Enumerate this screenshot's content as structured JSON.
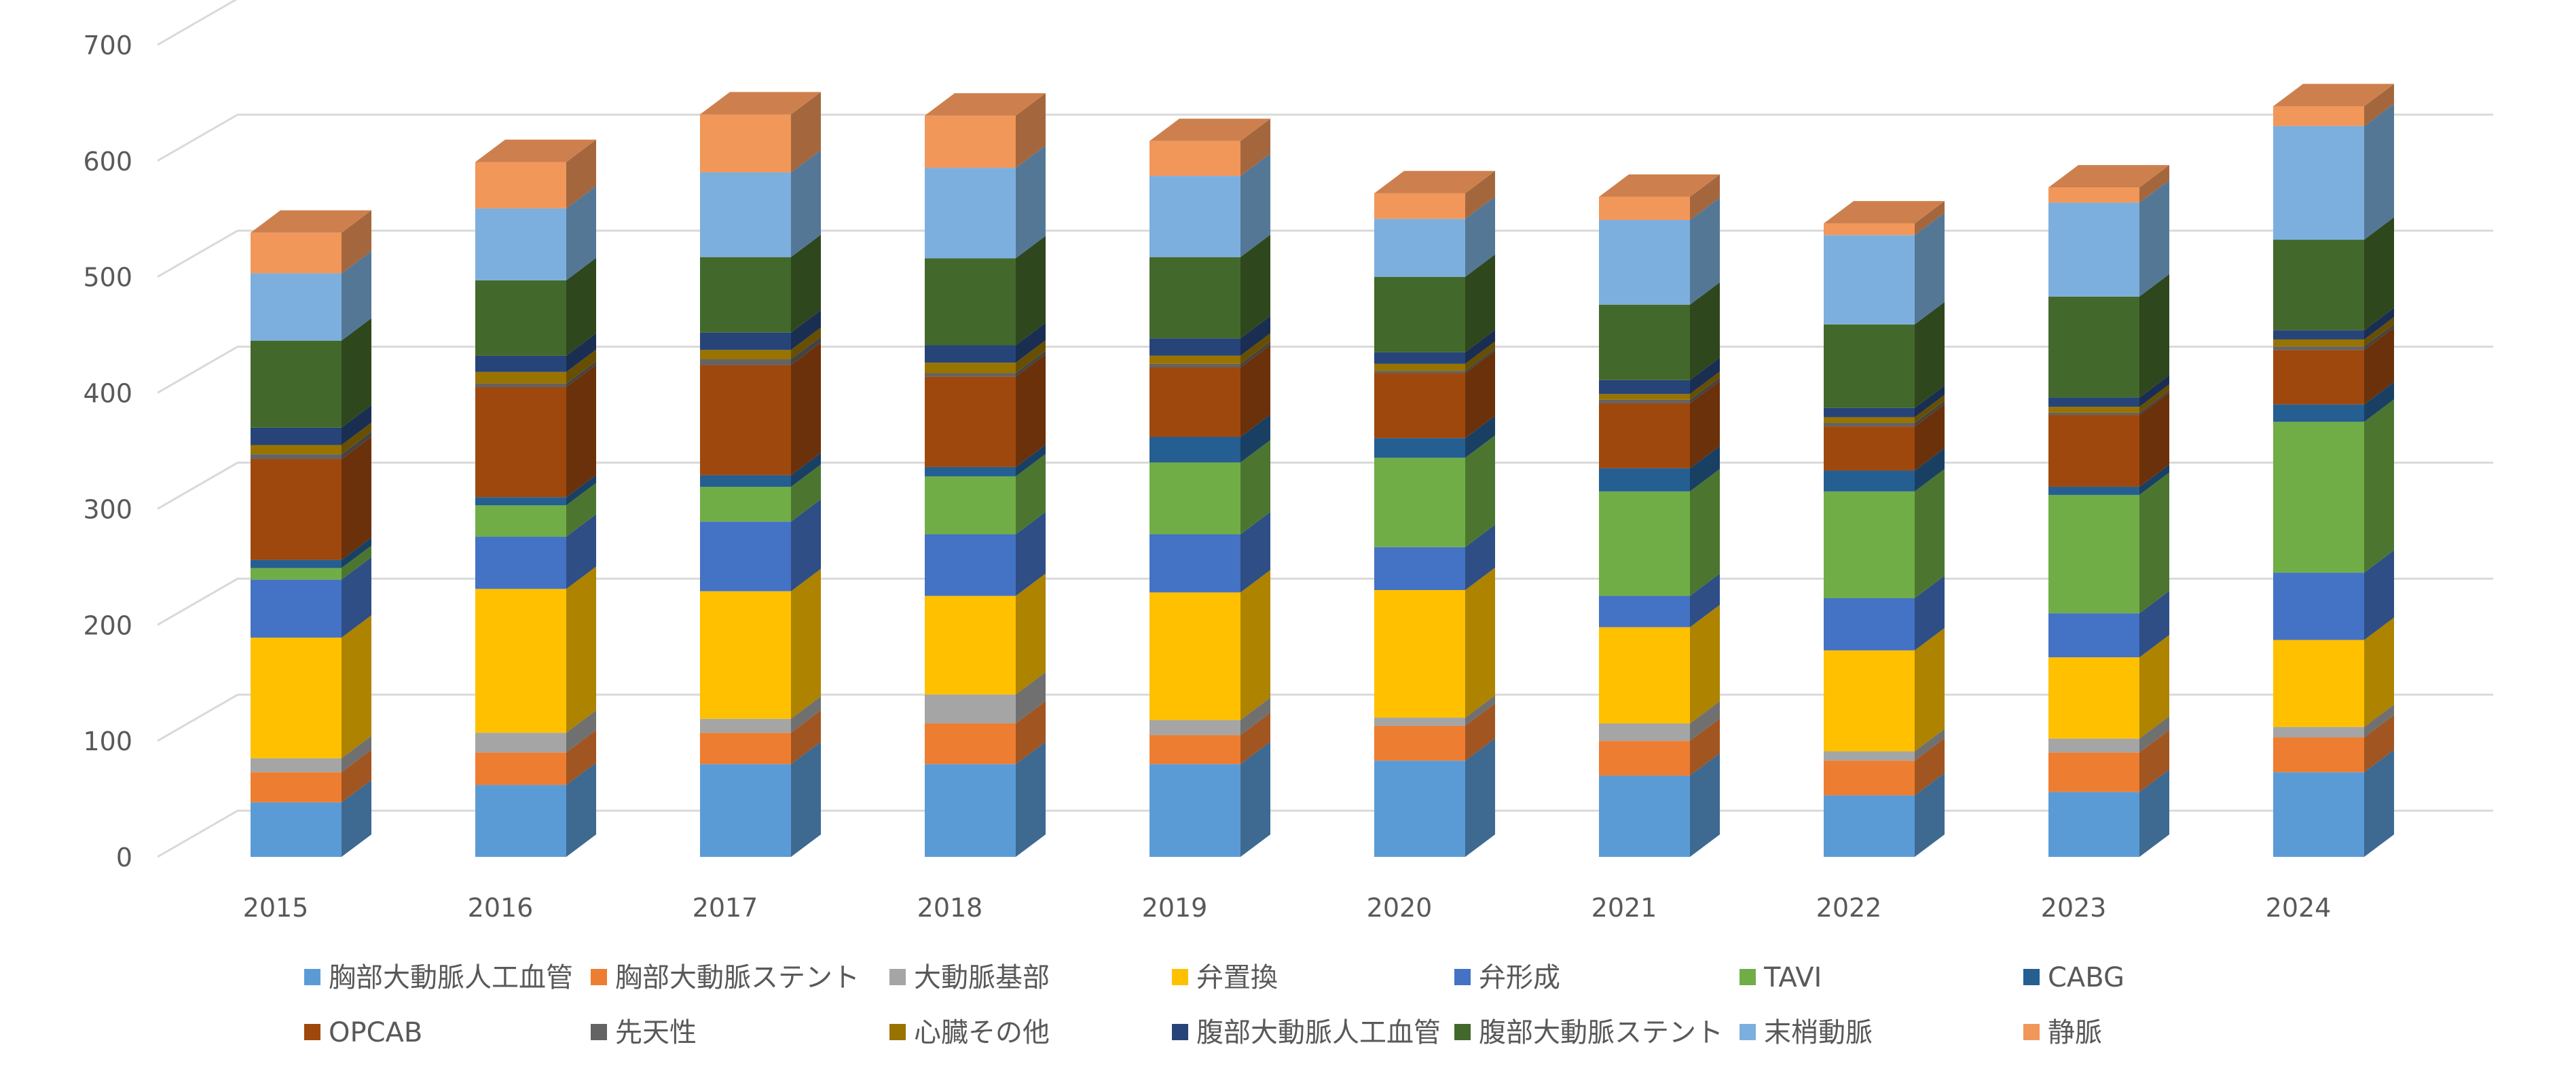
{
  "chart_data": {
    "type": "bar",
    "stacked": true,
    "style": "3d",
    "categories": [
      "2015",
      "2016",
      "2017",
      "2018",
      "2019",
      "2020",
      "2021",
      "2022",
      "2023",
      "2024"
    ],
    "ylim": [
      0,
      700
    ],
    "yticks": [
      0,
      100,
      200,
      300,
      400,
      500,
      600,
      700
    ],
    "ytick_labels": [
      "0",
      "100",
      "200",
      "300",
      "400",
      "500",
      "600",
      "700"
    ],
    "grid": true,
    "legend_position": "bottom",
    "title": "",
    "xlabel": "",
    "ylabel": "",
    "series": [
      {
        "name": "胸部大動脈人工血管",
        "color": "#5b9bd5",
        "values": [
          47,
          62,
          80,
          80,
          80,
          83,
          70,
          53,
          56,
          73
        ]
      },
      {
        "name": "胸部大動脈ステント",
        "color": "#ed7d31",
        "values": [
          26,
          28,
          27,
          35,
          25,
          30,
          30,
          30,
          34,
          30
        ]
      },
      {
        "name": "大動脈基部",
        "color": "#a5a5a5",
        "values": [
          12,
          17,
          12,
          25,
          13,
          7,
          15,
          8,
          12,
          9
        ]
      },
      {
        "name": "弁置換",
        "color": "#ffc000",
        "values": [
          104,
          124,
          110,
          85,
          110,
          110,
          83,
          87,
          70,
          75
        ]
      },
      {
        "name": "弁形成",
        "color": "#4472c4",
        "values": [
          50,
          45,
          60,
          53,
          50,
          37,
          27,
          45,
          38,
          58
        ]
      },
      {
        "name": "TAVI",
        "color": "#70ad47",
        "values": [
          10,
          27,
          30,
          50,
          62,
          77,
          90,
          92,
          102,
          130
        ]
      },
      {
        "name": "CABG",
        "color": "#255e91",
        "values": [
          7,
          7,
          10,
          8,
          22,
          17,
          20,
          18,
          7,
          15
        ]
      },
      {
        "name": "OPCAB",
        "color": "#9e480e",
        "values": [
          87,
          95,
          95,
          78,
          60,
          56,
          56,
          38,
          62,
          47
        ]
      },
      {
        "name": "先天性",
        "color": "#636363",
        "values": [
          4,
          3,
          5,
          3,
          3,
          2,
          3,
          3,
          2,
          3
        ]
      },
      {
        "name": "心臓その他",
        "color": "#997300",
        "values": [
          8,
          10,
          8,
          9,
          7,
          6,
          5,
          5,
          5,
          6
        ]
      },
      {
        "name": "腹部大動脈人工血管",
        "color": "#264478",
        "values": [
          15,
          14,
          15,
          15,
          15,
          10,
          12,
          8,
          8,
          8
        ]
      },
      {
        "name": "腹部大動脈ステント",
        "color": "#43682b",
        "values": [
          75,
          65,
          65,
          75,
          70,
          65,
          65,
          72,
          87,
          78
        ]
      },
      {
        "name": "末梢動脈",
        "color": "#7cafdd",
        "values": [
          58,
          62,
          73,
          78,
          70,
          50,
          73,
          77,
          81,
          98
        ]
      },
      {
        "name": "静脈",
        "color": "#f1975a",
        "values": [
          35,
          40,
          50,
          45,
          30,
          22,
          20,
          10,
          13,
          17
        ]
      }
    ]
  }
}
